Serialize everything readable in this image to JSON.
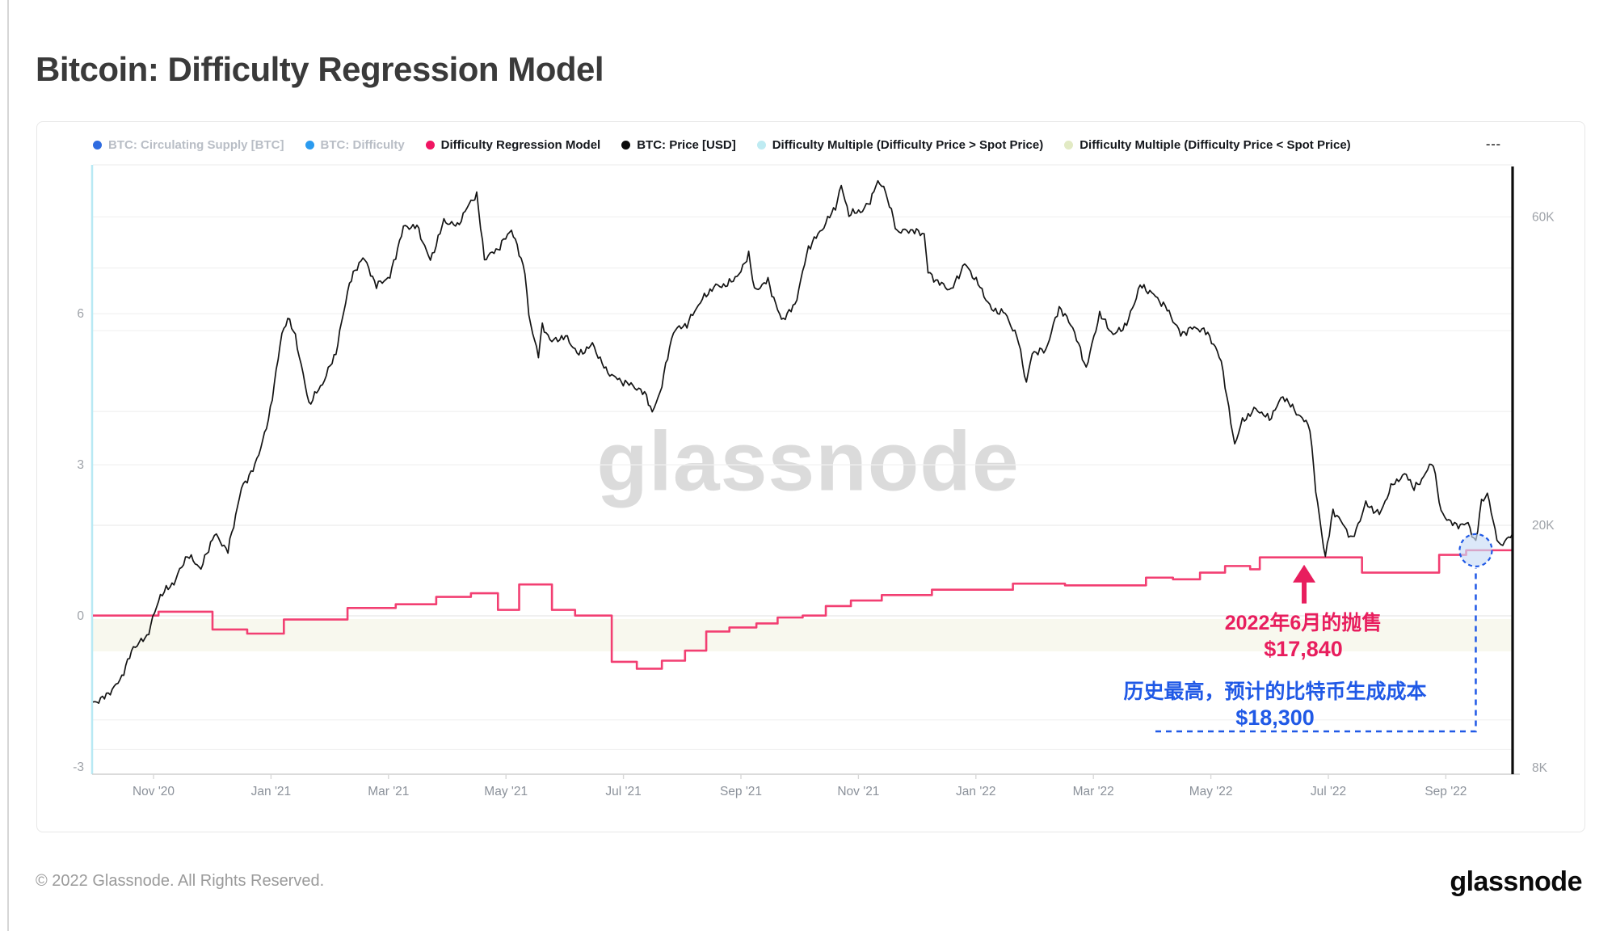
{
  "page": {
    "title": "Bitcoin: Difficulty Regression Model",
    "watermark": "glassnode",
    "footer_copyright": "© 2022 Glassnode. All Rights Reserved.",
    "brand_logo": "glassnode"
  },
  "legend": {
    "items": [
      {
        "label": "BTC: Circulating Supply [BTC]",
        "color": "#2e6be0",
        "active": false
      },
      {
        "label": "BTC: Difficulty",
        "color": "#2b9bef",
        "active": false
      },
      {
        "label": "Difficulty Regression Model",
        "color": "#f01562",
        "active": true
      },
      {
        "label": "BTC: Price [USD]",
        "color": "#0a0a0a",
        "active": true
      },
      {
        "label": "Difficulty Multiple (Difficulty Price > Spot Price)",
        "color": "#beebf2",
        "active": true
      },
      {
        "label": "Difficulty Multiple (Difficulty Price < Spot Price)",
        "color": "#e2eac4",
        "active": true
      }
    ],
    "more_label": "---"
  },
  "annotations": {
    "pink": {
      "line1": "2022年6月的抛售",
      "line2": "$17,840",
      "color": "#e81e5e",
      "arrow_day": 628,
      "arrow_price": 17840
    },
    "blue": {
      "line1": "历史最高，预计的比特币生成成本",
      "line2": "$18,300",
      "color": "#2059e6",
      "circle_day": 717,
      "circle_price": 18300
    }
  },
  "chart_data": {
    "type": "line",
    "title": "Bitcoin: Difficulty Regression Model",
    "x": {
      "unit": "days since 2020-10-01",
      "tick_labels": [
        "Nov '20",
        "Jan '21",
        "Mar '21",
        "May '21",
        "Jul '21",
        "Sep '21",
        "Nov '21",
        "Jan '22",
        "Mar '22",
        "May '22",
        "Jul '22",
        "Sep '22"
      ]
    },
    "y_left": {
      "ticks": [
        6,
        3,
        0,
        -3
      ],
      "range": [
        -3.3,
        9.0
      ]
    },
    "y_right": {
      "scale": "log",
      "ticks": [
        {
          "label": "60K",
          "value": 60000
        },
        {
          "label": "20K",
          "value": 20000
        },
        {
          "label": "8K",
          "value": 8000
        }
      ],
      "range": [
        7800,
        73000
      ]
    },
    "gridline_prices": [
      60000,
      50000,
      40000,
      30000,
      20000,
      10000,
      9000
    ],
    "gridline_left_values": [
      6,
      3,
      0
    ],
    "band_below_zero": {
      "color": "rgba(243,243,226,0.6)"
    },
    "series": [
      {
        "name": "BTC: Price [USD]",
        "style": "line",
        "color": "#141414",
        "points": [
          [
            0,
            10600
          ],
          [
            7,
            10900
          ],
          [
            14,
            11500
          ],
          [
            21,
            12950
          ],
          [
            28,
            13450
          ],
          [
            35,
            15600
          ],
          [
            42,
            16300
          ],
          [
            49,
            18000
          ],
          [
            56,
            17150
          ],
          [
            63,
            19400
          ],
          [
            70,
            18250
          ],
          [
            77,
            22800
          ],
          [
            84,
            24700
          ],
          [
            91,
            29000
          ],
          [
            98,
            39500
          ],
          [
            101,
            41900
          ],
          [
            105,
            39200
          ],
          [
            112,
            30800
          ],
          [
            119,
            33100
          ],
          [
            126,
            37000
          ],
          [
            133,
            47500
          ],
          [
            140,
            52100
          ],
          [
            147,
            47000
          ],
          [
            154,
            48500
          ],
          [
            161,
            57800
          ],
          [
            168,
            58000
          ],
          [
            175,
            51300
          ],
          [
            182,
            59100
          ],
          [
            189,
            58100
          ],
          [
            196,
            63500
          ],
          [
            199,
            64800
          ],
          [
            203,
            51700
          ],
          [
            210,
            53500
          ],
          [
            217,
            57400
          ],
          [
            224,
            49500
          ],
          [
            226,
            42000
          ],
          [
            231,
            36700
          ],
          [
            233,
            40600
          ],
          [
            238,
            38500
          ],
          [
            245,
            39200
          ],
          [
            252,
            36700
          ],
          [
            259,
            38100
          ],
          [
            266,
            34700
          ],
          [
            273,
            33500
          ],
          [
            280,
            32900
          ],
          [
            287,
            31800
          ],
          [
            290,
            29800
          ],
          [
            294,
            32100
          ],
          [
            301,
            40000
          ],
          [
            308,
            40900
          ],
          [
            315,
            44400
          ],
          [
            322,
            46800
          ],
          [
            329,
            47100
          ],
          [
            336,
            49300
          ],
          [
            340,
            52700
          ],
          [
            343,
            46100
          ],
          [
            350,
            47800
          ],
          [
            353,
            44900
          ],
          [
            357,
            41500
          ],
          [
            364,
            43800
          ],
          [
            371,
            53800
          ],
          [
            378,
            57400
          ],
          [
            385,
            62200
          ],
          [
            388,
            66900
          ],
          [
            392,
            60600
          ],
          [
            399,
            61400
          ],
          [
            403,
            63300
          ],
          [
            406,
            67500
          ],
          [
            410,
            67000
          ],
          [
            417,
            56900
          ],
          [
            424,
            57200
          ],
          [
            431,
            56500
          ],
          [
            433,
            49200
          ],
          [
            438,
            47600
          ],
          [
            445,
            46200
          ],
          [
            452,
            50800
          ],
          [
            459,
            47300
          ],
          [
            466,
            43100
          ],
          [
            473,
            42600
          ],
          [
            480,
            38500
          ],
          [
            484,
            33100
          ],
          [
            487,
            37000
          ],
          [
            494,
            37300
          ],
          [
            501,
            43500
          ],
          [
            508,
            40500
          ],
          [
            515,
            35000
          ],
          [
            522,
            42500
          ],
          [
            529,
            39400
          ],
          [
            536,
            40900
          ],
          [
            543,
            47000
          ],
          [
            550,
            45500
          ],
          [
            557,
            43200
          ],
          [
            564,
            39500
          ],
          [
            571,
            40500
          ],
          [
            578,
            39700
          ],
          [
            585,
            36000
          ],
          [
            589,
            30100
          ],
          [
            592,
            26700
          ],
          [
            596,
            29000
          ],
          [
            603,
            30300
          ],
          [
            610,
            29200
          ],
          [
            617,
            31700
          ],
          [
            624,
            29900
          ],
          [
            631,
            28400
          ],
          [
            634,
            22600
          ],
          [
            639,
            17840
          ],
          [
            643,
            21100
          ],
          [
            648,
            20100
          ],
          [
            653,
            19000
          ],
          [
            660,
            21600
          ],
          [
            667,
            20800
          ],
          [
            674,
            23200
          ],
          [
            681,
            24000
          ],
          [
            685,
            22800
          ],
          [
            688,
            23300
          ],
          [
            692,
            24400
          ],
          [
            695,
            25000
          ],
          [
            699,
            20900
          ],
          [
            706,
            20000
          ],
          [
            713,
            20100
          ],
          [
            717,
            18800
          ],
          [
            720,
            21800
          ],
          [
            723,
            22400
          ],
          [
            727,
            19600
          ],
          [
            730,
            18500
          ],
          [
            734,
            19200
          ],
          [
            736,
            19400
          ]
        ]
      },
      {
        "name": "Difficulty Regression Model",
        "style": "step",
        "color": "#f23f72",
        "points": [
          [
            0,
            14500
          ],
          [
            34,
            14700
          ],
          [
            62,
            13800
          ],
          [
            80,
            13600
          ],
          [
            99,
            14300
          ],
          [
            132,
            14900
          ],
          [
            157,
            15100
          ],
          [
            178,
            15500
          ],
          [
            196,
            15700
          ],
          [
            210,
            14800
          ],
          [
            221,
            16200
          ],
          [
            238,
            14800
          ],
          [
            250,
            14500
          ],
          [
            269,
            12300
          ],
          [
            282,
            12000
          ],
          [
            295,
            12350
          ],
          [
            307,
            12800
          ],
          [
            318,
            13700
          ],
          [
            330,
            13900
          ],
          [
            344,
            14100
          ],
          [
            355,
            14400
          ],
          [
            368,
            14500
          ],
          [
            380,
            15000
          ],
          [
            393,
            15300
          ],
          [
            409,
            15600
          ],
          [
            435,
            15900
          ],
          [
            477,
            16250
          ],
          [
            504,
            16150
          ],
          [
            546,
            16600
          ],
          [
            560,
            16500
          ],
          [
            574,
            16900
          ],
          [
            587,
            17300
          ],
          [
            600,
            17100
          ],
          [
            605,
            17840
          ],
          [
            658,
            16900
          ],
          [
            698,
            18000
          ],
          [
            712,
            18300
          ],
          [
            736,
            18300
          ]
        ]
      }
    ],
    "legend_position": "top",
    "grid": true
  }
}
